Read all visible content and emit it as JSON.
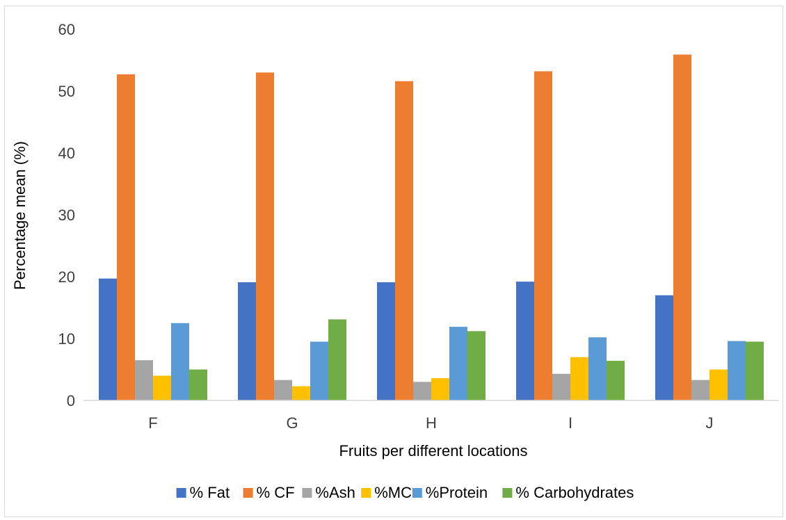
{
  "chart_data": {
    "type": "bar",
    "title": "",
    "xlabel": "Fruits per different locations",
    "ylabel": "Percentage mean (%)",
    "categories": [
      "F",
      "G",
      "H",
      "I",
      "J"
    ],
    "ylim": [
      0,
      60
    ],
    "yticks": [
      0,
      10,
      20,
      30,
      40,
      50,
      60
    ],
    "grid": false,
    "legend_position": "bottom",
    "series": [
      {
        "name": "% Fat",
        "color": "#4472c4",
        "values": [
          19.7,
          19.1,
          19.1,
          19.2,
          17.0
        ]
      },
      {
        "name": "% CF",
        "color": "#ed7d31",
        "values": [
          52.7,
          53.0,
          51.6,
          53.2,
          55.9
        ]
      },
      {
        "name": "%Ash",
        "color": "#a5a5a5",
        "values": [
          6.5,
          3.3,
          3.0,
          4.3,
          3.3
        ]
      },
      {
        "name": "%MC",
        "color": "#ffc000",
        "values": [
          4.0,
          2.3,
          3.6,
          7.0,
          5.0
        ]
      },
      {
        "name": "%Protein",
        "color": "#5b9bd5",
        "values": [
          12.5,
          9.5,
          11.9,
          10.2,
          9.6
        ]
      },
      {
        "name": "% Carbohydrates",
        "color": "#70ad47",
        "values": [
          5.0,
          13.1,
          11.2,
          6.4,
          9.5
        ]
      }
    ]
  }
}
